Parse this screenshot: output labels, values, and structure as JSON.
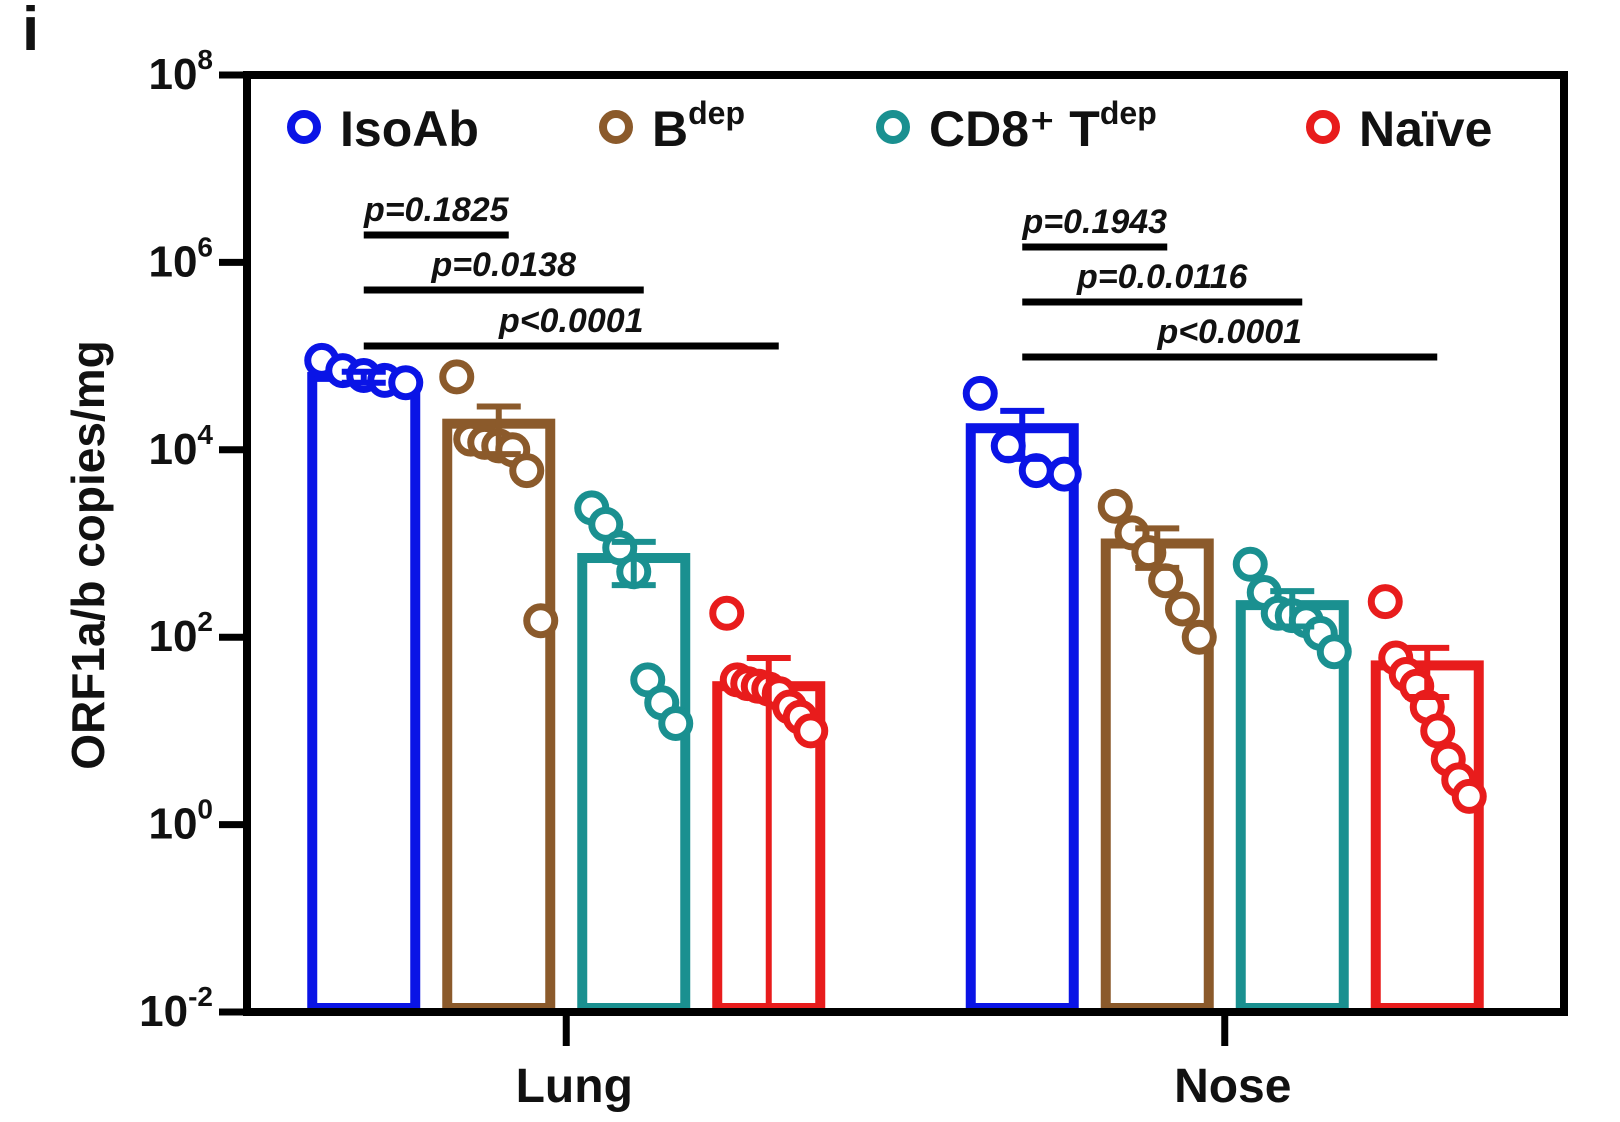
{
  "chart_data": {
    "panel_label": "i",
    "type": "bar",
    "ylabel": "ORF1a/b copies/mg",
    "y_scale": "log10",
    "ylim": [
      0.01,
      100000000
    ],
    "yticks": [
      {
        "value": 0.01,
        "base": "10",
        "exp": "-2"
      },
      {
        "value": 1,
        "base": "10",
        "exp": "0"
      },
      {
        "value": 100,
        "base": "10",
        "exp": "2"
      },
      {
        "value": 10000,
        "base": "10",
        "exp": "4"
      },
      {
        "value": 1000000,
        "base": "10",
        "exp": "6"
      },
      {
        "value": 100000000,
        "base": "10",
        "exp": "8"
      }
    ],
    "categories": [
      "Lung",
      "Nose"
    ],
    "legend_position": "top",
    "series": [
      {
        "key": "isoab",
        "name": "IsoAb",
        "name_sup": "",
        "color": "#0a14e6",
        "values": [
          60000,
          17000
        ],
        "sem": [
          8000,
          9000
        ],
        "points": [
          [
            90000,
            70000,
            62000,
            55000,
            52000
          ],
          [
            40000,
            11000,
            6000,
            5500
          ]
        ]
      },
      {
        "key": "bdep",
        "name": "B",
        "name_sup": "dep",
        "color": "#8b5a2b",
        "values": [
          19000,
          1000
        ],
        "sem": [
          10000,
          450
        ],
        "points": [
          [
            60000,
            13000,
            12000,
            11000,
            10000,
            6000,
            150
          ],
          [
            2500,
            1300,
            800,
            400,
            200,
            100
          ]
        ]
      },
      {
        "key": "cd8",
        "name": "CD8⁺ T",
        "name_sup": "dep",
        "color": "#1a9090",
        "values": [
          700,
          220
        ],
        "sem": [
          340,
          90
        ],
        "points": [
          [
            2400,
            1600,
            900,
            500,
            35,
            20,
            12
          ],
          [
            600,
            300,
            180,
            170,
            150,
            110,
            70
          ]
        ]
      },
      {
        "key": "naive",
        "name": "Naïve",
        "name_sup": "",
        "color": "#e81c1c",
        "values": [
          30,
          50
        ],
        "sem": [
          30,
          27
        ],
        "points": [
          [
            180,
            35,
            32,
            30,
            28,
            25,
            18,
            14,
            10
          ],
          [
            240,
            60,
            40,
            30,
            18,
            10,
            5,
            3,
            2
          ]
        ]
      }
    ],
    "annotations": [
      {
        "category": "Lung",
        "from_series": 0,
        "to_series": 1,
        "text": "p=0.1825",
        "level": 0
      },
      {
        "category": "Lung",
        "from_series": 0,
        "to_series": 2,
        "text": "p=0.0138",
        "level": 1
      },
      {
        "category": "Lung",
        "from_series": 0,
        "to_series": 3,
        "text": "p<0.0001",
        "level": 2
      },
      {
        "category": "Nose",
        "from_series": 0,
        "to_series": 1,
        "text": "p=0.1943",
        "level": 0
      },
      {
        "category": "Nose",
        "from_series": 0,
        "to_series": 2,
        "text": "p=0.0.0116",
        "level": 1
      },
      {
        "category": "Nose",
        "from_series": 0,
        "to_series": 3,
        "text": "p<0.0001",
        "level": 2
      }
    ]
  }
}
